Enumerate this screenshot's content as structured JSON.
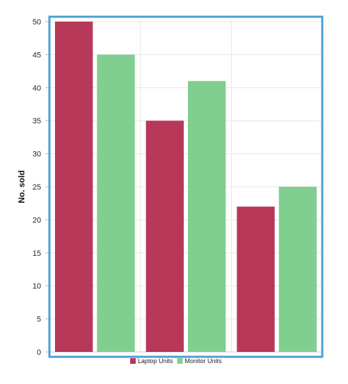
{
  "chart_data": {
    "type": "bar",
    "categories": [
      "",
      "",
      ""
    ],
    "series": [
      {
        "name": "Laptop Units",
        "values": [
          50,
          35,
          22
        ],
        "color": "#b8385a"
      },
      {
        "name": "Monitor Units",
        "values": [
          45,
          41,
          25
        ],
        "color": "#80cf90"
      }
    ],
    "title": "",
    "xlabel": "",
    "ylabel": "No. sold",
    "ylim": [
      0,
      50
    ],
    "yticks": [
      0,
      5,
      10,
      15,
      20,
      25,
      30,
      35,
      40,
      45,
      50
    ],
    "grid": true,
    "legend_position": "bottom-center",
    "selection_outline_color": "#4a9fd4"
  }
}
